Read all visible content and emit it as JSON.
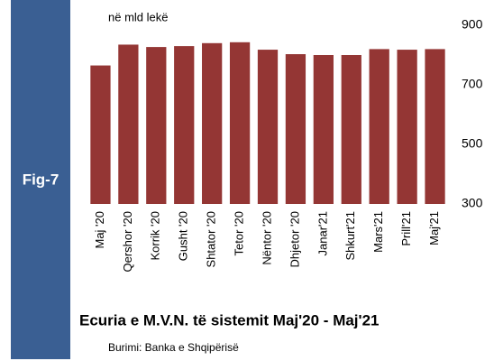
{
  "fig_label": "Fig-7",
  "chart_data": {
    "type": "bar",
    "title": "Ecuria e M.V.N. të sistemit Maj'20 - Maj'21",
    "y_label": "në mld lekë",
    "source": "Burimi: Banka e Shqipërisë",
    "categories": [
      "Maj '20",
      "Qershor '20",
      "Korrik '20",
      "Gusht '20",
      "Shtator '20",
      "Tetor '20",
      "Nëntor '20",
      "Dhjetor '20",
      "Janar'21",
      "Shkurt'21",
      "Mars'21",
      "Prill'21",
      "Maj'21"
    ],
    "values": [
      765,
      835,
      827,
      830,
      840,
      843,
      818,
      803,
      800,
      800,
      820,
      818,
      820
    ],
    "color": "#943634",
    "ylim": [
      300,
      900
    ],
    "yticks": [
      300,
      500,
      700,
      900
    ],
    "grid": false
  }
}
